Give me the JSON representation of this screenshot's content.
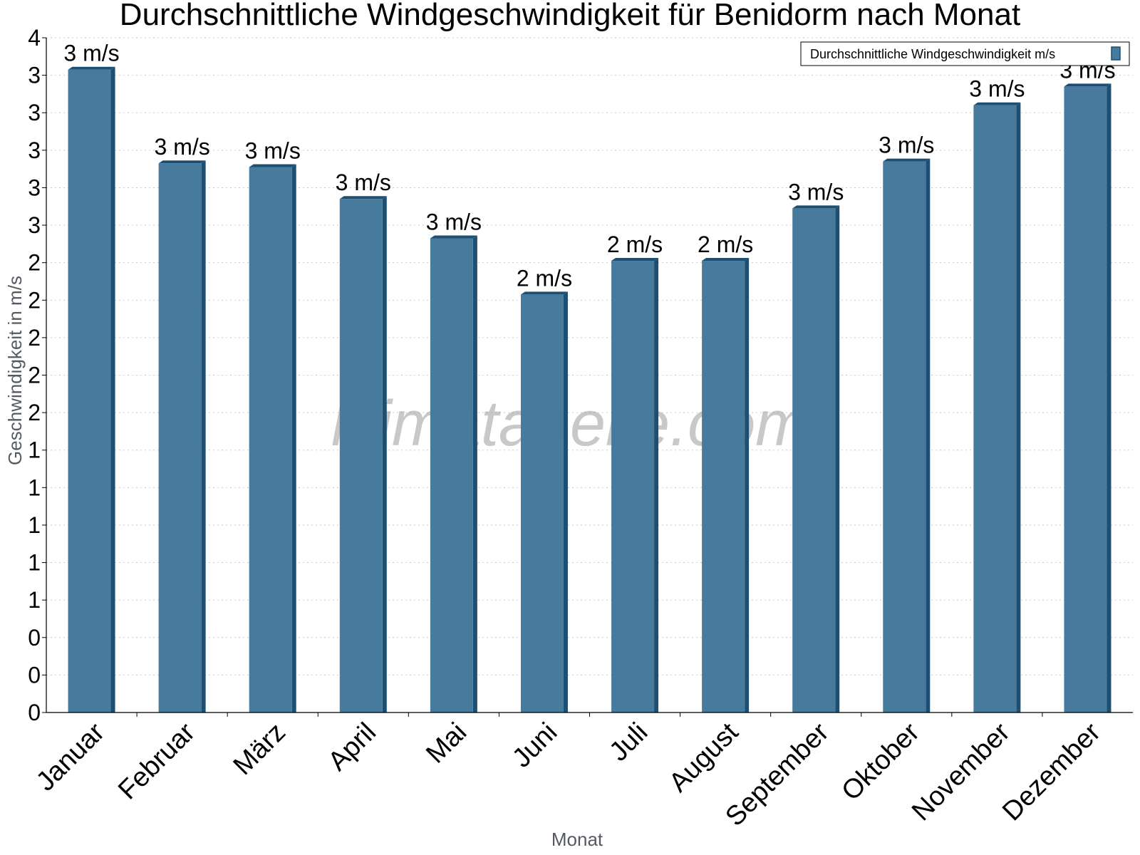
{
  "chart_data": {
    "type": "bar",
    "title": "Durchschnittliche Windgeschwindigkeit für Benidorm nach Monat",
    "xlabel": "Monat",
    "ylabel": "Geschwindigkeit in m/s",
    "categories": [
      "Januar",
      "Februar",
      "März",
      "April",
      "Mai",
      "Juni",
      "Juli",
      "August",
      "September",
      "Oktober",
      "November",
      "Dezember"
    ],
    "series": [
      {
        "name": "Durchschnittliche Windgeschwindigkeit m/s",
        "values": [
          3.43,
          2.93,
          2.91,
          2.74,
          2.53,
          2.23,
          2.41,
          2.41,
          2.69,
          2.94,
          3.24,
          3.34
        ],
        "labels": [
          "3 m/s",
          "3 m/s",
          "3 m/s",
          "3 m/s",
          "3 m/s",
          "2 m/s",
          "2 m/s",
          "2 m/s",
          "3 m/s",
          "3 m/s",
          "3 m/s",
          "3 m/s"
        ]
      }
    ],
    "ylim": [
      0,
      3.6
    ],
    "yticks": [
      0,
      0.2,
      0.4,
      0.6,
      0.8,
      1.0,
      1.2,
      1.4,
      1.6,
      1.8,
      2.0,
      2.2,
      2.4,
      2.6,
      2.8,
      3.0,
      3.2,
      3.4,
      3.6
    ],
    "ytick_labels": [
      "0",
      "0",
      "0",
      "1",
      "1",
      "1",
      "1",
      "1",
      "2",
      "2",
      "2",
      "2",
      "2",
      "3",
      "3",
      "3",
      "3",
      "3",
      "4"
    ],
    "grid": true,
    "legend_position": "top-right",
    "watermark": "klimatabelle.com",
    "colors": {
      "bar": "#467b9e",
      "bar_side": "#1e4f72",
      "grid": "#c8c8c8"
    }
  }
}
